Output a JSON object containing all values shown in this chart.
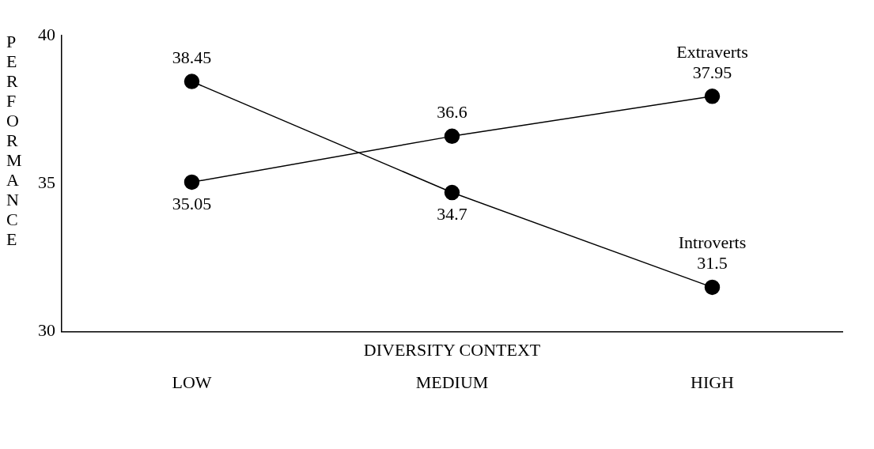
{
  "chart_data": {
    "type": "line",
    "xlabel": "DIVERSITY CONTEXT",
    "ylabel": "PERFORMANCE",
    "categories": [
      "LOW",
      "MEDIUM",
      "HIGH"
    ],
    "series": [
      {
        "name": "Introverts",
        "color": "#000000",
        "values": [
          38.45,
          34.7,
          31.5
        ]
      },
      {
        "name": "Extraverts",
        "color": "#000000",
        "values": [
          35.05,
          36.6,
          37.95
        ]
      }
    ],
    "ylim": [
      30,
      40
    ],
    "yticks": [
      30,
      35,
      40
    ],
    "grid": false,
    "legend": false,
    "marker": "circle",
    "line_style": "solid",
    "data_labels": true
  }
}
